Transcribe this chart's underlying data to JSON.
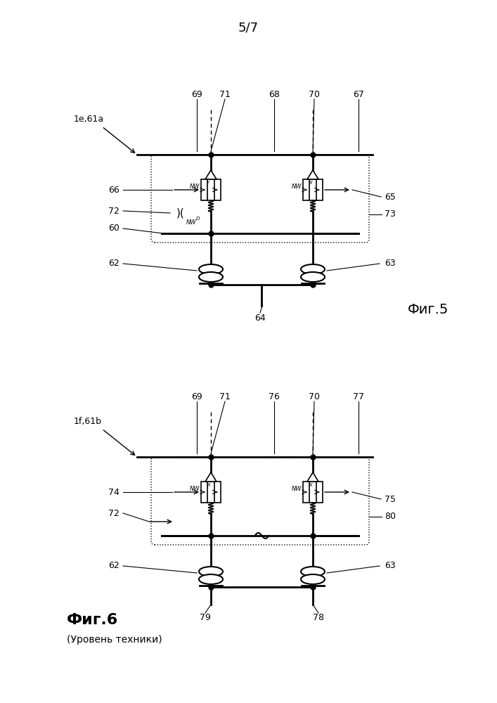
{
  "page_label": "5/7",
  "fig5_label": "Фиг.5",
  "fig6_label": "Фиг.6",
  "fig6_sublabel": "(Уровень техники)",
  "fig5_ref": "1е,61а",
  "fig6_ref": "1f,61b",
  "bg": "#ffffff",
  "lc": "#000000"
}
